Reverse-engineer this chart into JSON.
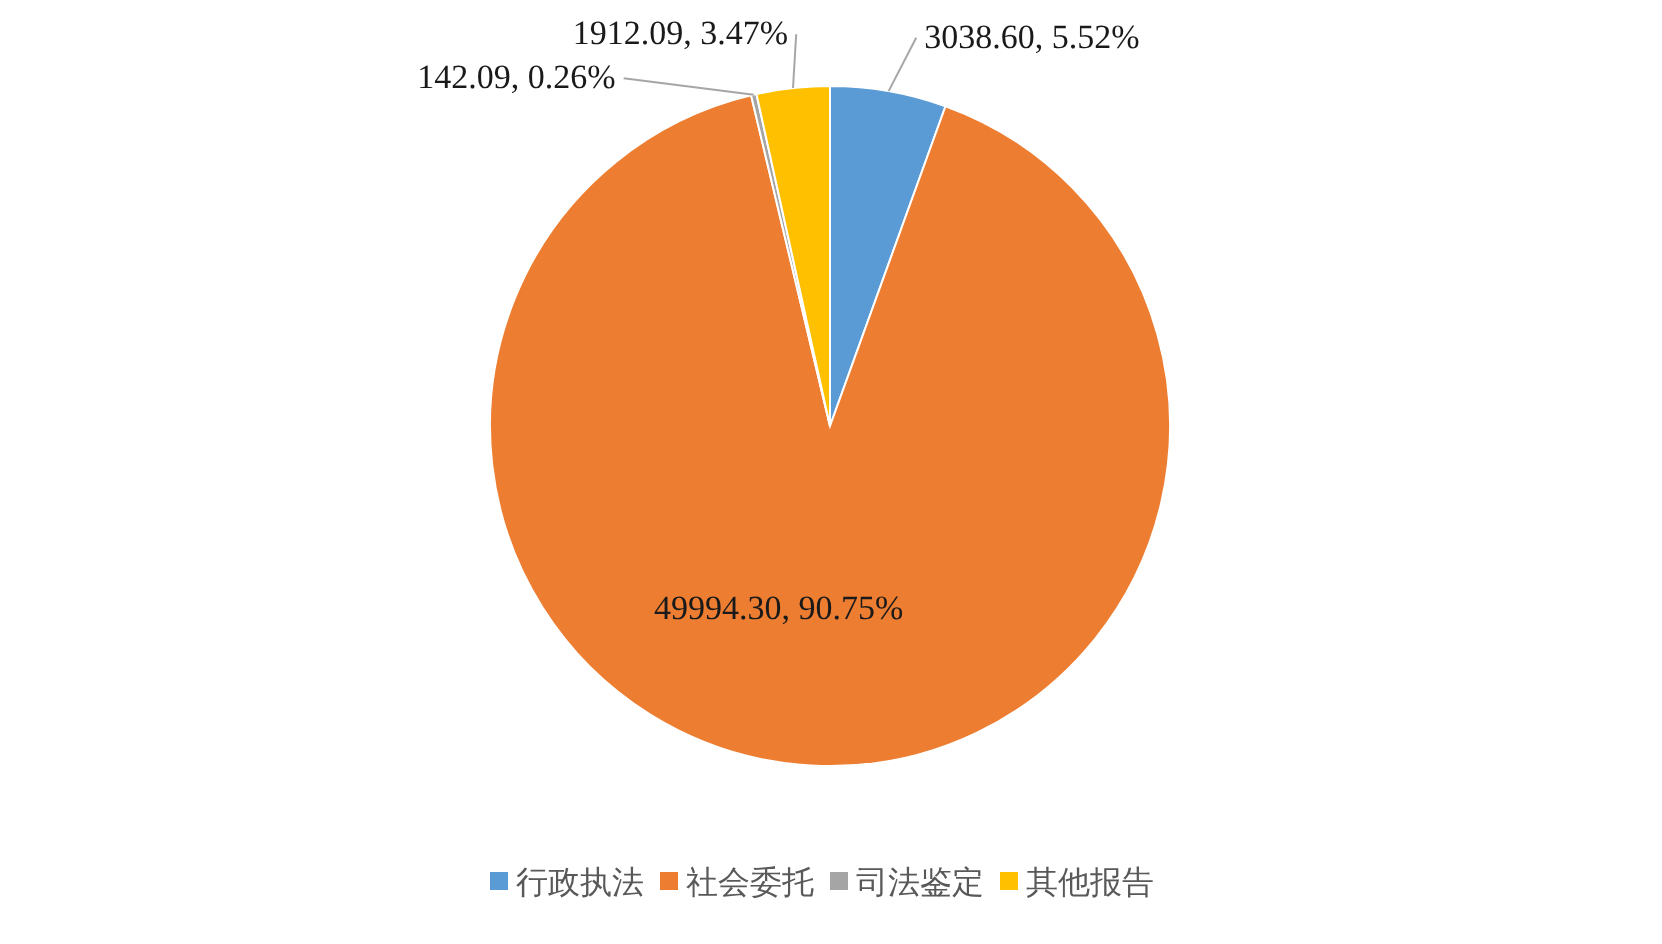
{
  "chart_data": {
    "type": "pie",
    "categories": [
      "行政执法",
      "社会委托",
      "司法鉴定",
      "其他报告"
    ],
    "values": [
      3038.6,
      49994.3,
      142.09,
      1912.09
    ],
    "colors": [
      "#5b9bd5",
      "#ed7d31",
      "#a5a5a5",
      "#ffc000"
    ],
    "value_labels": [
      "3038.60, 5.52%",
      "49994.30, 90.75%",
      "142.09, 0.26%",
      "1912.09, 3.47%"
    ],
    "legend": "bottom"
  }
}
